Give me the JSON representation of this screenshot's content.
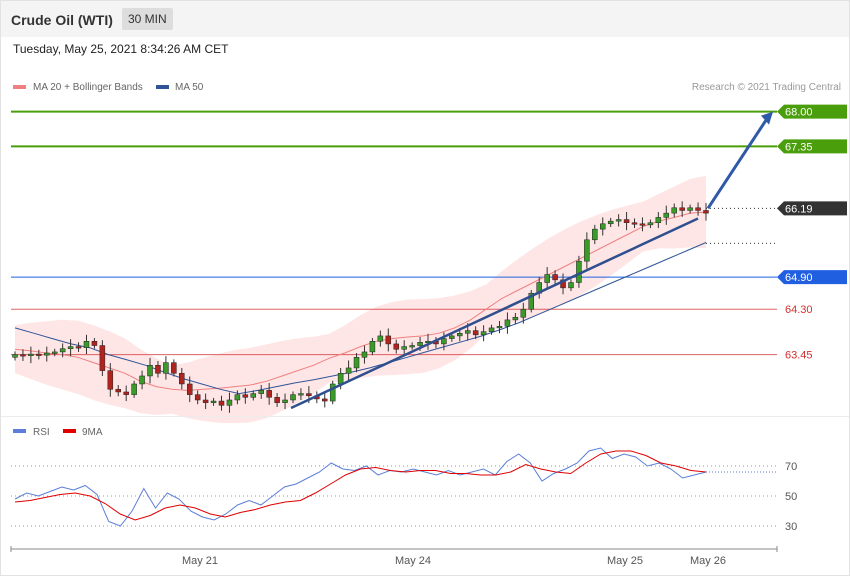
{
  "header": {
    "title": "Crude Oil (WTI)",
    "interval": "30 MIN",
    "datetime": "Tuesday, May 25, 2021 8:34:26 AM CET"
  },
  "legend": {
    "ma20": {
      "label": "MA 20 + Bollinger Bands",
      "color": "#f08080"
    },
    "ma50": {
      "label": "MA 50",
      "color": "#2f5597"
    },
    "credit": "Research © 2021 Trading Central"
  },
  "rsi_legend": {
    "rsi": {
      "label": "RSI",
      "color": "#5b7fd6"
    },
    "ma9": {
      "label": "9MA",
      "color": "#e00000"
    }
  },
  "levels": [
    {
      "value": 68.0,
      "label": "68.00",
      "kind": "resistance",
      "color": "#4a9e0c"
    },
    {
      "value": 67.35,
      "label": "67.35",
      "kind": "resistance",
      "color": "#4a9e0c"
    },
    {
      "value": 66.19,
      "label": "66.19",
      "kind": "last",
      "color": "#333333"
    },
    {
      "value": 64.9,
      "label": "64.90",
      "kind": "pivot",
      "color": "#1f5fe0"
    },
    {
      "value": 64.3,
      "label": "64.30",
      "kind": "support",
      "color": "#d32f2f"
    },
    {
      "value": 63.45,
      "label": "63.45",
      "kind": "support",
      "color": "#d32f2f"
    }
  ],
  "chart_data": [
    {
      "type": "line",
      "name": "price",
      "y_range": [
        62.3,
        68.2
      ],
      "series": [
        {
          "name": "Crude Oil (WTI)",
          "role": "close",
          "color": "#555555",
          "values": [
            63.45,
            63.43,
            63.46,
            63.44,
            63.48,
            63.5,
            63.56,
            63.6,
            63.58,
            63.7,
            63.62,
            63.15,
            62.8,
            62.75,
            62.7,
            62.9,
            63.05,
            63.25,
            63.1,
            63.3,
            63.1,
            62.9,
            62.7,
            62.6,
            62.55,
            62.58,
            62.5,
            62.6,
            62.7,
            62.65,
            62.72,
            62.78,
            62.65,
            62.55,
            62.6,
            62.7,
            62.72,
            62.68,
            62.62,
            62.58,
            62.9,
            63.1,
            63.2,
            63.4,
            63.5,
            63.7,
            63.8,
            63.65,
            63.55,
            63.6,
            63.62,
            63.68,
            63.7,
            63.65,
            63.75,
            63.8,
            63.85,
            63.9,
            63.82,
            63.88,
            63.95,
            63.98,
            64.1,
            64.15,
            64.3,
            64.6,
            64.8,
            64.95,
            64.85,
            64.7,
            64.8,
            65.2,
            65.6,
            65.8,
            65.9,
            65.95,
            65.98,
            65.92,
            65.9,
            65.88,
            65.92,
            66.02,
            66.1,
            66.2,
            66.15,
            66.2,
            66.15,
            66.1
          ]
        },
        {
          "name": "MA 20",
          "values": [
            63.55,
            63.52,
            63.48,
            63.45,
            63.4,
            63.3,
            63.2,
            63.1,
            62.95,
            62.85,
            62.8,
            62.78,
            62.8,
            62.82,
            62.85,
            62.88,
            62.95,
            63.05,
            63.15,
            63.25,
            63.38,
            63.48,
            63.6,
            63.7,
            63.75,
            63.78,
            63.8,
            63.85,
            63.95,
            64.1,
            64.3,
            64.5,
            64.65,
            64.8,
            64.95,
            65.1,
            65.25,
            65.4,
            65.55,
            65.7,
            65.85,
            65.95,
            66.02,
            66.1,
            66.12
          ]
        },
        {
          "name": "MA 50",
          "values": [
            63.95,
            63.85,
            63.75,
            63.65,
            63.58,
            63.45,
            63.35,
            63.25,
            63.12,
            63.0,
            62.9,
            62.8,
            62.72,
            62.78,
            62.85,
            62.92,
            62.98,
            63.05,
            63.12,
            63.2,
            63.3,
            63.4,
            63.5,
            63.6,
            63.7,
            63.8,
            63.92,
            64.05,
            64.2,
            64.35,
            64.5,
            64.65,
            64.8,
            64.95,
            65.1,
            65.25,
            65.4,
            65.55
          ]
        }
      ]
    },
    {
      "type": "line",
      "name": "rsi",
      "y_range": [
        20,
        80
      ],
      "gridlines": [
        70,
        50,
        30
      ],
      "x_labels": [
        "May 21",
        "May 24",
        "May 25",
        "May 26"
      ],
      "series": [
        {
          "name": "RSI",
          "color": "#5b7fd6",
          "values": [
            48,
            52,
            50,
            53,
            56,
            54,
            57,
            51,
            33,
            30,
            40,
            55,
            42,
            52,
            48,
            40,
            36,
            34,
            38,
            44,
            47,
            44,
            50,
            56,
            58,
            62,
            66,
            72,
            68,
            67,
            70,
            64,
            67,
            66,
            68,
            66,
            64,
            67,
            64,
            66,
            68,
            64,
            73,
            78,
            72,
            60,
            65,
            68,
            72,
            80,
            82,
            75,
            78,
            76,
            70,
            72,
            68,
            62,
            64,
            66
          ]
        },
        {
          "name": "9MA",
          "color": "#e00000",
          "values": [
            46,
            47,
            49,
            51,
            52,
            50,
            45,
            38,
            34,
            37,
            42,
            44,
            42,
            38,
            36,
            39,
            41,
            44,
            46,
            47,
            52,
            58,
            64,
            68,
            69,
            67,
            66,
            67,
            67,
            65,
            65,
            64,
            64,
            66,
            71,
            68,
            66,
            65,
            72,
            78,
            80,
            80,
            77,
            72,
            70,
            67,
            66
          ]
        }
      ]
    }
  ]
}
